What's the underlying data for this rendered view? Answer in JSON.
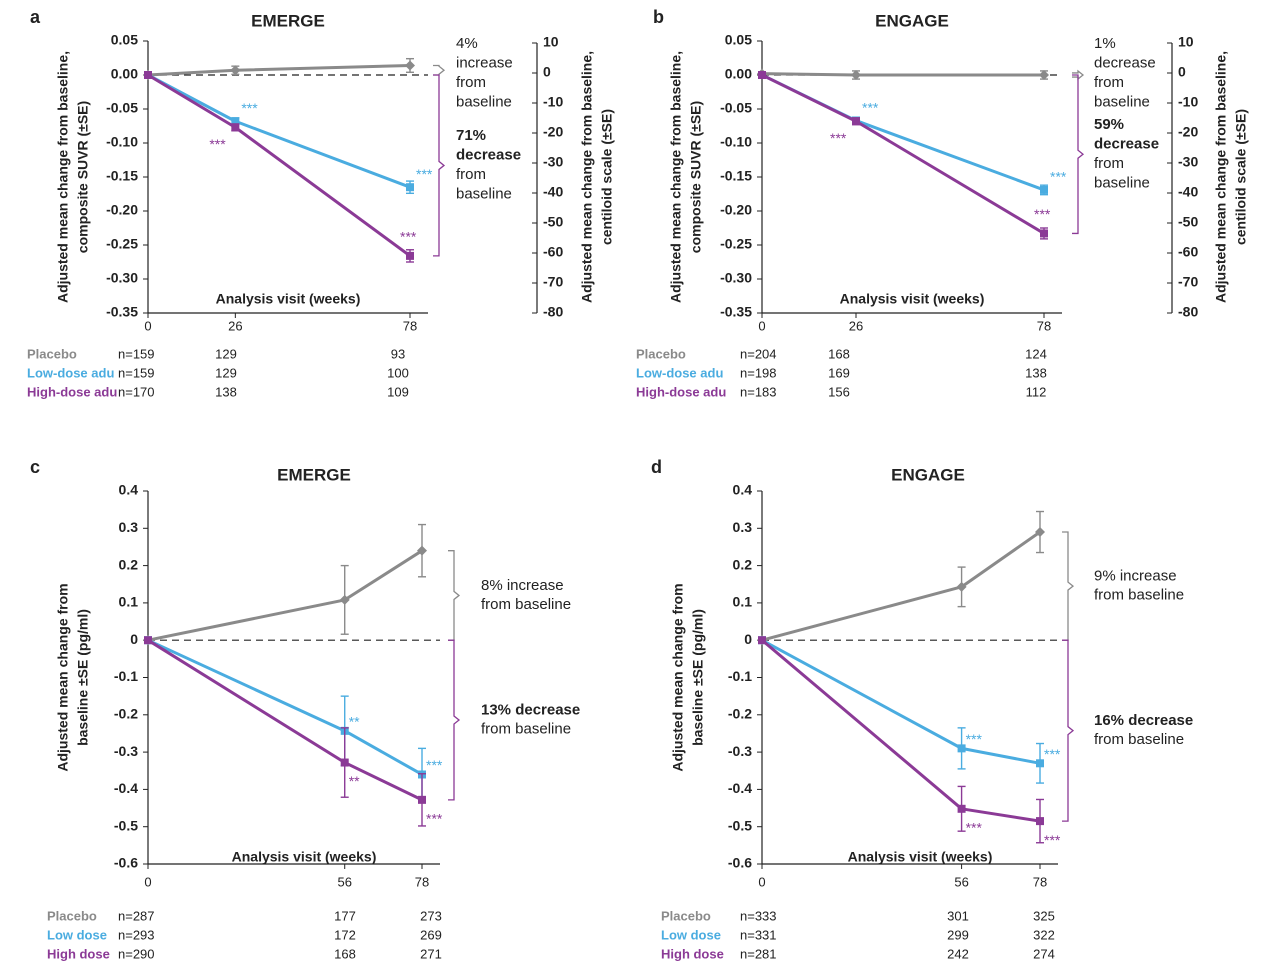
{
  "colors": {
    "placebo": "#8a8a8a",
    "low": "#4aace0",
    "high": "#8b3a96",
    "axis": "#222222"
  },
  "chart_data": [
    {
      "panel_label": "a",
      "title": "EMERGE",
      "type": "line",
      "xlabel": "Analysis visit (weeks)",
      "ylabel": [
        "Adjusted mean change from baseline,",
        "composite SUVR (±SE)"
      ],
      "ylabel_right": [
        "Adjusted mean change from baseline,",
        "centiloid scale (±SE)"
      ],
      "x": [
        0,
        26,
        78
      ],
      "xlim": [
        0,
        78
      ],
      "ylim": [
        -0.35,
        0.05
      ],
      "yticks": [
        "0.05",
        "0.00",
        "-0.05",
        "-0.10",
        "-0.15",
        "-0.20",
        "-0.25",
        "-0.30",
        "-0.35"
      ],
      "yticks_right": [
        "10",
        "0",
        "-10",
        "-20",
        "-30",
        "-40",
        "-50",
        "-60",
        "-70",
        "-80"
      ],
      "series": [
        {
          "name": "Placebo",
          "color": "placebo",
          "marker": "diamond",
          "values": [
            0,
            0.007,
            0.014
          ],
          "se": [
            0,
            0.006,
            0.01
          ],
          "stars": [
            "",
            "",
            ""
          ]
        },
        {
          "name": "Low-dose adu",
          "color": "low",
          "marker": "square",
          "values": [
            0,
            -0.068,
            -0.165
          ],
          "se": [
            0,
            0.005,
            0.009
          ],
          "stars": [
            "",
            "***",
            "***"
          ]
        },
        {
          "name": "High-dose adu",
          "color": "high",
          "marker": "square",
          "values": [
            0,
            -0.077,
            -0.266
          ],
          "se": [
            0,
            0.005,
            0.009
          ],
          "stars": [
            "",
            "***",
            "***"
          ]
        }
      ],
      "annotations": [
        {
          "text": [
            "4%",
            "increase",
            "from",
            "baseline"
          ],
          "bold": [
            false,
            false,
            false,
            false
          ],
          "color": "placebo",
          "y_range": [
            0.014,
            0.0
          ]
        },
        {
          "text": [
            "71%",
            "decrease",
            "from",
            "baseline"
          ],
          "bold": [
            true,
            true,
            false,
            false
          ],
          "color": "high",
          "y_range": [
            0.0,
            -0.266
          ]
        }
      ],
      "n_table": {
        "rows": [
          {
            "label": "Placebo",
            "color": "placebo",
            "values": [
              "n=159",
              "129",
              "93"
            ]
          },
          {
            "label": "Low-dose adu",
            "color": "low",
            "values": [
              "n=159",
              "129",
              "100"
            ]
          },
          {
            "label": "High-dose adu",
            "color": "high",
            "values": [
              "n=170",
              "138",
              "109"
            ]
          }
        ]
      }
    },
    {
      "panel_label": "b",
      "title": "ENGAGE",
      "type": "line",
      "xlabel": "Analysis visit (weeks)",
      "ylabel": [
        "Adjusted mean change from baseline,",
        "composite SUVR (±SE)"
      ],
      "ylabel_right": [
        "Adjusted mean change from baseline,",
        "centiloid scale (±SE)"
      ],
      "x": [
        0,
        26,
        78
      ],
      "xlim": [
        0,
        78
      ],
      "ylim": [
        -0.35,
        0.05
      ],
      "yticks": [
        "0.05",
        "0.00",
        "-0.05",
        "-0.10",
        "-0.15",
        "-0.20",
        "-0.25",
        "-0.30",
        "-0.35"
      ],
      "yticks_right": [
        "10",
        "0",
        "-10",
        "-20",
        "-30",
        "-40",
        "-50",
        "-60",
        "-70",
        "-80"
      ],
      "series": [
        {
          "name": "Placebo",
          "color": "placebo",
          "marker": "diamond",
          "values": [
            0.002,
            0.0,
            0.0
          ],
          "se": [
            0,
            0.006,
            0.006
          ],
          "stars": [
            "",
            "",
            ""
          ]
        },
        {
          "name": "Low-dose adu",
          "color": "low",
          "marker": "square",
          "values": [
            0,
            -0.067,
            -0.169
          ],
          "se": [
            0,
            0.005,
            0.007
          ],
          "stars": [
            "",
            "***",
            "***"
          ]
        },
        {
          "name": "High-dose adu",
          "color": "high",
          "marker": "square",
          "values": [
            0,
            -0.068,
            -0.233
          ],
          "se": [
            0,
            0.005,
            0.008
          ],
          "stars": [
            "",
            "***",
            "***"
          ]
        }
      ],
      "annotations": [
        {
          "text": [
            "1%",
            "decrease",
            "from",
            "baseline"
          ],
          "bold": [
            false,
            false,
            false,
            false
          ],
          "color": "placebo",
          "y_range": [
            0.003,
            -0.003
          ]
        },
        {
          "text": [
            "59%",
            "decrease",
            "from",
            "baseline"
          ],
          "bold": [
            true,
            true,
            false,
            false
          ],
          "color": "high",
          "y_range": [
            0.0,
            -0.233
          ]
        }
      ],
      "n_table": {
        "rows": [
          {
            "label": "Placebo",
            "color": "placebo",
            "values": [
              "n=204",
              "168",
              "124"
            ]
          },
          {
            "label": "Low-dose adu",
            "color": "low",
            "values": [
              "n=198",
              "169",
              "138"
            ]
          },
          {
            "label": "High-dose adu",
            "color": "high",
            "values": [
              "n=183",
              "156",
              "112"
            ]
          }
        ]
      }
    },
    {
      "panel_label": "c",
      "title": "EMERGE",
      "type": "line",
      "xlabel": "Analysis visit (weeks)",
      "ylabel": [
        "Adjusted mean change from",
        "baseline ±SE (pg/ml)"
      ],
      "x": [
        0,
        56,
        78
      ],
      "xlim": [
        0,
        78
      ],
      "ylim": [
        -0.6,
        0.4
      ],
      "yticks": [
        "0.4",
        "0.3",
        "0.2",
        "0.1",
        "0",
        "-0.1",
        "-0.2",
        "-0.3",
        "-0.4",
        "-0.5",
        "-0.6"
      ],
      "series": [
        {
          "name": "Placebo",
          "color": "placebo",
          "marker": "diamond",
          "values": [
            0,
            0.108,
            0.24
          ],
          "se": [
            0,
            0.092,
            0.07
          ],
          "stars": [
            "",
            "",
            ""
          ]
        },
        {
          "name": "Low dose",
          "color": "low",
          "marker": "square",
          "values": [
            0,
            -0.243,
            -0.36
          ],
          "se": [
            0,
            0.093,
            0.07
          ],
          "stars": [
            "",
            "**",
            "***"
          ]
        },
        {
          "name": "High dose",
          "color": "high",
          "marker": "square",
          "values": [
            0,
            -0.328,
            -0.428
          ],
          "se": [
            0,
            0.093,
            0.07
          ],
          "stars": [
            "",
            "**",
            "***"
          ]
        }
      ],
      "annotations": [
        {
          "text": [
            "8% increase",
            "from baseline"
          ],
          "bold": [
            false,
            false
          ],
          "color": "placebo",
          "y_range": [
            0.24,
            0.0
          ]
        },
        {
          "text": [
            "13% decrease",
            "from baseline"
          ],
          "bold": [
            true,
            false
          ],
          "color": "high",
          "y_range": [
            0.0,
            -0.428
          ]
        }
      ],
      "n_table": {
        "rows": [
          {
            "label": "Placebo",
            "color": "placebo",
            "values": [
              "n=287",
              "177",
              "273"
            ]
          },
          {
            "label": "Low dose",
            "color": "low",
            "values": [
              "n=293",
              "172",
              "269"
            ]
          },
          {
            "label": "High dose",
            "color": "high",
            "values": [
              "n=290",
              "168",
              "271"
            ]
          }
        ]
      }
    },
    {
      "panel_label": "d",
      "title": "ENGAGE",
      "type": "line",
      "xlabel": "Analysis visit (weeks)",
      "ylabel": [
        "Adjusted mean change from",
        "baseline ±SE (pg/ml)"
      ],
      "x": [
        0,
        56,
        78
      ],
      "xlim": [
        0,
        78
      ],
      "ylim": [
        -0.6,
        0.4
      ],
      "yticks": [
        "0.4",
        "0.3",
        "0.2",
        "0.1",
        "0",
        "-0.1",
        "-0.2",
        "-0.3",
        "-0.4",
        "-0.5",
        "-0.6"
      ],
      "series": [
        {
          "name": "Placebo",
          "color": "placebo",
          "marker": "diamond",
          "values": [
            0,
            0.143,
            0.29
          ],
          "se": [
            0,
            0.053,
            0.055
          ],
          "stars": [
            "",
            "",
            ""
          ]
        },
        {
          "name": "Low dose",
          "color": "low",
          "marker": "square",
          "values": [
            0,
            -0.29,
            -0.33
          ],
          "se": [
            0,
            0.055,
            0.053
          ],
          "stars": [
            "",
            "***",
            "***"
          ]
        },
        {
          "name": "High dose",
          "color": "high",
          "marker": "square",
          "values": [
            0,
            -0.452,
            -0.485
          ],
          "se": [
            0,
            0.06,
            0.058
          ],
          "stars": [
            "",
            "***",
            "***"
          ]
        }
      ],
      "annotations": [
        {
          "text": [
            "9% increase",
            "from baseline"
          ],
          "bold": [
            false,
            false
          ],
          "color": "placebo",
          "y_range": [
            0.29,
            0.0
          ]
        },
        {
          "text": [
            "16% decrease",
            "from baseline"
          ],
          "bold": [
            true,
            false
          ],
          "color": "high",
          "y_range": [
            0.0,
            -0.485
          ]
        }
      ],
      "n_table": {
        "rows": [
          {
            "label": "Placebo",
            "color": "placebo",
            "values": [
              "n=333",
              "301",
              "325"
            ]
          },
          {
            "label": "Low dose",
            "color": "low",
            "values": [
              "n=331",
              "299",
              "322"
            ]
          },
          {
            "label": "High dose",
            "color": "high",
            "values": [
              "n=281",
              "242",
              "274"
            ]
          }
        ]
      }
    }
  ]
}
